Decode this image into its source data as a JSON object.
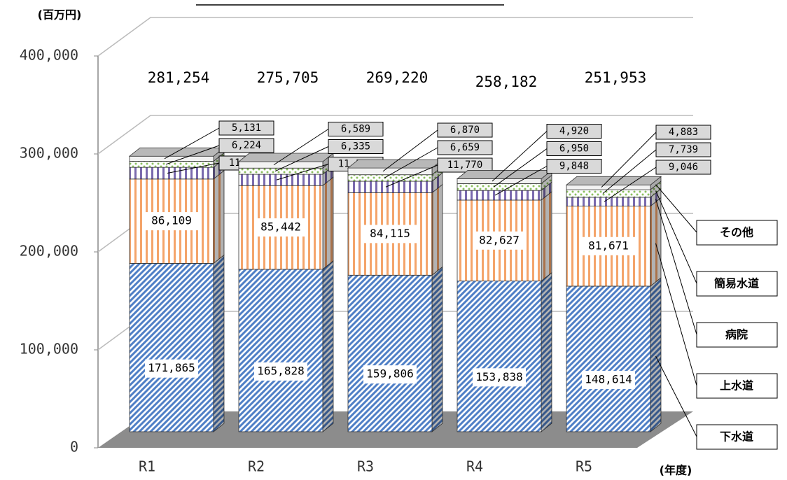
{
  "chart_data": {
    "type": "bar3d_stacked",
    "y_label": "(百万円)",
    "x_label": "(年度)",
    "categories": [
      "R1",
      "R2",
      "R3",
      "R4",
      "R5"
    ],
    "series": [
      {
        "name": "下水道",
        "color": "#4f7fc6",
        "values": [
          171865,
          165828,
          159806,
          153838,
          148614
        ],
        "value_labels": [
          "171,865",
          "165,828",
          "159,806",
          "153,838",
          "148,614"
        ]
      },
      {
        "name": "上水道",
        "color": "#f4a46a",
        "values": [
          86109,
          85442,
          84115,
          82627,
          81671
        ],
        "value_labels": [
          "86,109",
          "85,442",
          "84,115",
          "82,627",
          "81,671"
        ]
      },
      {
        "name": "病院",
        "color": "#7a6aae",
        "values": [
          11924,
          11512,
          11770,
          9848,
          9046
        ],
        "value_labels": [
          "11,924",
          "11,512",
          "11,770",
          "9,848",
          "9,046"
        ]
      },
      {
        "name": "簡易水道",
        "color": "#8cc060",
        "values": [
          6224,
          6335,
          6659,
          6950,
          7739
        ],
        "value_labels": [
          "6,224",
          "6,335",
          "6,659",
          "6,950",
          "7,739"
        ]
      },
      {
        "name": "その他",
        "color": "#d8d8d8",
        "values": [
          5131,
          6589,
          6870,
          4920,
          4883
        ],
        "value_labels": [
          "5,131",
          "6,589",
          "6,870",
          "4,920",
          "4,883"
        ]
      }
    ],
    "totals": [
      "281,254",
      "275,705",
      "269,220",
      "258,182",
      "251,953"
    ],
    "ylim": [
      0,
      400000
    ],
    "yticks": [
      0,
      {
        "value": 100000,
        "label": "100,000"
      },
      {
        "value": 200000,
        "label": "200,000"
      },
      {
        "value": 300000,
        "label": "300,000"
      },
      {
        "value": 400000,
        "label": "400,000"
      }
    ],
    "grid": true
  }
}
